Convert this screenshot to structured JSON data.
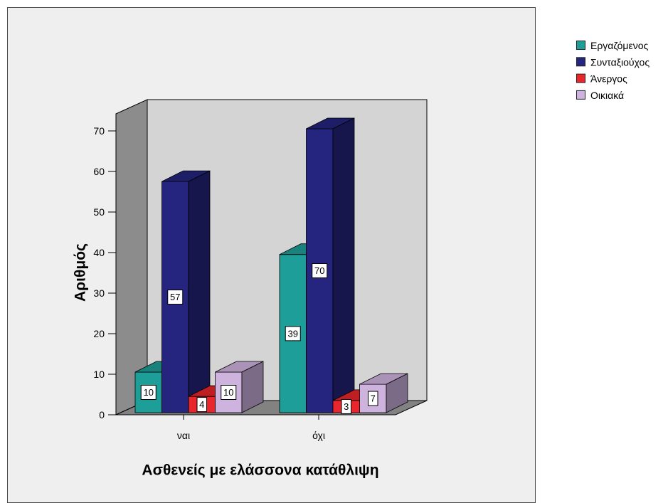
{
  "chart_data": {
    "type": "bar",
    "three_d": true,
    "categories": [
      "ναι",
      "όχι"
    ],
    "series": [
      {
        "name": "Εργαζόμενος",
        "values": [
          10,
          39
        ],
        "color": "#1e9e99"
      },
      {
        "name": "Συνταξιούχος",
        "values": [
          57,
          70
        ],
        "color": "#25257f"
      },
      {
        "name": "Άνεργος",
        "values": [
          4,
          3
        ],
        "color": "#e8262b"
      },
      {
        "name": "Οικιακά",
        "values": [
          10,
          7
        ],
        "color": "#cfb3df"
      }
    ],
    "xlabel": "Ασθενείς με ελάσσονα κατάθλιψη",
    "ylabel": "Αριθμός",
    "ylim": [
      0,
      70
    ],
    "yticks": [
      0,
      10,
      20,
      30,
      40,
      50,
      60,
      70
    ],
    "grid": false,
    "legend": "right",
    "data_labels": true
  }
}
